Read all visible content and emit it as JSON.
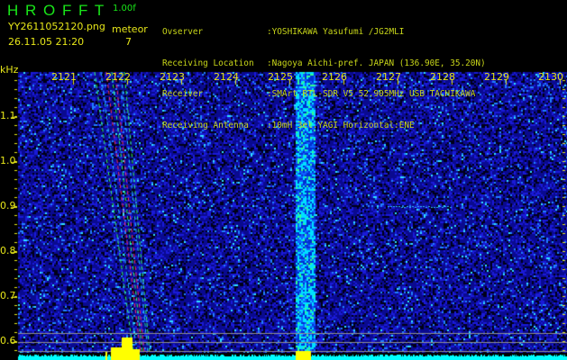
{
  "header": {
    "app_title": "H R O F F T",
    "version": "1.00f",
    "filename": "YY2611052120.png",
    "datetime": "26.11.05 21:20",
    "meteor_label": "meteor",
    "meteor_count": "7",
    "info": [
      {
        "label": "Ovserver",
        "value": ":YOSHIKAWA Yasufumi /JG2MLI"
      },
      {
        "label": "Receiving Location",
        "value": ":Nagoya Aichi-pref. JAPAN (136.90E, 35.20N)"
      },
      {
        "label": "Receiver",
        "value": ":SMArt RTL-SDR V5 52.905MHz USB TACHIKAWA"
      },
      {
        "label": "Receiving Antenna",
        "value": ":10mH 3el.YAGI Horizontal:ENE"
      }
    ]
  },
  "spectrogram": {
    "unit": "kHz",
    "x_ticks": [
      "2121",
      "2122",
      "2123",
      "2124",
      "2125",
      "2126",
      "2127",
      "2128",
      "2129",
      "2130"
    ],
    "y_ticks": [
      "1.1",
      "1.0",
      "0.9",
      "0.8",
      "0.7",
      "0.6"
    ],
    "colors": {
      "background": "#000000",
      "noise": "#1a1aa8",
      "signal": "#00ffff",
      "meteor": "#ffff00",
      "text": "#e6e619",
      "title": "#19e619"
    }
  }
}
